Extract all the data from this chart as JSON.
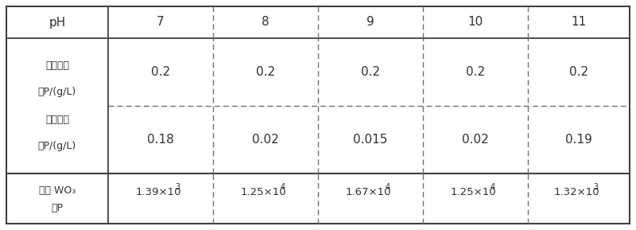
{
  "headers": [
    "pH",
    "7",
    "8",
    "9",
    "10",
    "11"
  ],
  "row12_label_top": "初始磷浓",
  "row12_label_mid1": "度P/(g/L)",
  "row12_label_mid2": "剩余磷浓",
  "row12_label_bot": "度P/(g/L)",
  "row1_values": [
    "0.2",
    "0.2",
    "0.2",
    "0.2",
    "0.2"
  ],
  "row2_values": [
    "0.18",
    "0.02",
    "0.015",
    "0.02",
    "0.19"
  ],
  "row3_label_top": "最终 WO₃",
  "row3_label_bot": "：P",
  "row3_bases": [
    "1.39×10",
    "1.25×10",
    "1.67×10",
    "1.25×10",
    "1.32×10"
  ],
  "row3_exps": [
    "3",
    "4",
    "4",
    "4",
    "3"
  ],
  "background_color": "#ffffff",
  "border_color": "#404040",
  "text_color": "#303030",
  "dash_color": "#707070"
}
